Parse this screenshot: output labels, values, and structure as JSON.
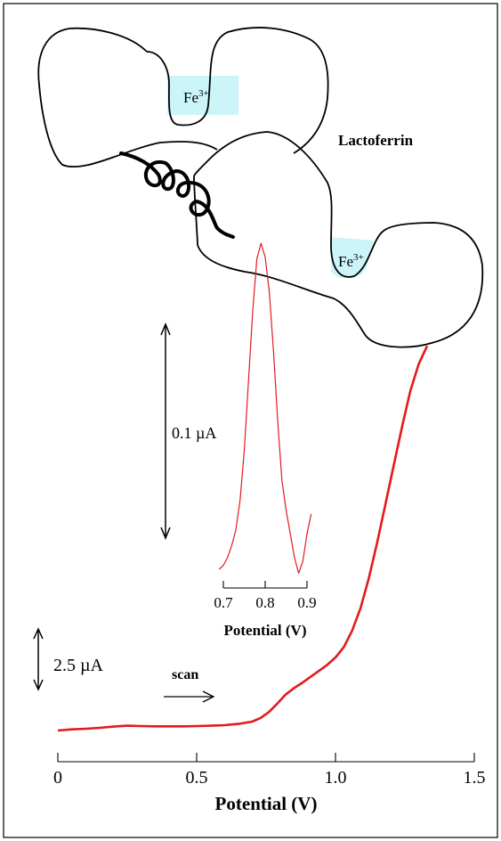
{
  "figure": {
    "protein_label": "Lactoferrin",
    "ion_label_main": "Fe",
    "ion_label_sup": "3+",
    "scan_label": "scan",
    "main_scale_bar_label": "2.5 µA",
    "inset_scale_bar_label": "0.1 µA",
    "colors": {
      "trace": "#e31a1c",
      "fe_site_fill": "#ccf5fa",
      "outline": "#000000"
    }
  },
  "chart_data": [
    {
      "type": "line",
      "id": "main",
      "xlabel": "Potential (V)",
      "ylabel": "",
      "xlim": [
        0,
        1.5
      ],
      "ylim": [
        0,
        13
      ],
      "x_ticks": [
        0,
        0.5,
        1.0,
        1.5
      ],
      "x_tick_labels": [
        "0",
        "0.5",
        "1.0",
        "1.5"
      ],
      "scale_bar": {
        "label": "2.5 µA",
        "value": 2.5
      },
      "series": [
        {
          "color": "#e31a1c",
          "points": [
            [
              0.0,
              0.0
            ],
            [
              0.05,
              0.04
            ],
            [
              0.1,
              0.06
            ],
            [
              0.15,
              0.09
            ],
            [
              0.2,
              0.13
            ],
            [
              0.25,
              0.16
            ],
            [
              0.3,
              0.15
            ],
            [
              0.35,
              0.14
            ],
            [
              0.4,
              0.14
            ],
            [
              0.45,
              0.14
            ],
            [
              0.5,
              0.15
            ],
            [
              0.55,
              0.16
            ],
            [
              0.6,
              0.18
            ],
            [
              0.65,
              0.22
            ],
            [
              0.7,
              0.3
            ],
            [
              0.73,
              0.42
            ],
            [
              0.76,
              0.62
            ],
            [
              0.79,
              0.9
            ],
            [
              0.82,
              1.2
            ],
            [
              0.85,
              1.42
            ],
            [
              0.88,
              1.6
            ],
            [
              0.91,
              1.8
            ],
            [
              0.94,
              2.0
            ],
            [
              0.97,
              2.2
            ],
            [
              1.0,
              2.45
            ],
            [
              1.03,
              2.8
            ],
            [
              1.06,
              3.35
            ],
            [
              1.09,
              4.1
            ],
            [
              1.12,
              5.1
            ],
            [
              1.15,
              6.3
            ],
            [
              1.18,
              7.6
            ],
            [
              1.21,
              8.9
            ],
            [
              1.24,
              10.2
            ],
            [
              1.27,
              11.4
            ],
            [
              1.3,
              12.3
            ],
            [
              1.33,
              12.9
            ]
          ]
        }
      ]
    },
    {
      "type": "line",
      "id": "inset",
      "xlabel": "Potential (V)",
      "ylabel": "",
      "xlim": [
        0.7,
        0.9
      ],
      "ylim": [
        0,
        0.17
      ],
      "x_ticks": [
        0.7,
        0.8,
        0.9
      ],
      "x_tick_labels": [
        "0.7",
        "0.8",
        "0.9"
      ],
      "scale_bar": {
        "label": "0.1 µA",
        "value": 0.1
      },
      "series": [
        {
          "color": "#e31a1c",
          "points": [
            [
              0.69,
              0.0
            ],
            [
              0.7,
              0.002
            ],
            [
              0.71,
              0.006
            ],
            [
              0.72,
              0.012
            ],
            [
              0.73,
              0.02
            ],
            [
              0.74,
              0.035
            ],
            [
              0.75,
              0.06
            ],
            [
              0.76,
              0.095
            ],
            [
              0.77,
              0.13
            ],
            [
              0.78,
              0.157
            ],
            [
              0.79,
              0.165
            ],
            [
              0.8,
              0.158
            ],
            [
              0.81,
              0.14
            ],
            [
              0.82,
              0.11
            ],
            [
              0.83,
              0.075
            ],
            [
              0.84,
              0.045
            ],
            [
              0.85,
              0.03
            ],
            [
              0.86,
              0.018
            ],
            [
              0.87,
              0.006
            ],
            [
              0.88,
              -0.002
            ],
            [
              0.89,
              0.004
            ],
            [
              0.9,
              0.018
            ],
            [
              0.91,
              0.028
            ]
          ]
        }
      ]
    }
  ]
}
